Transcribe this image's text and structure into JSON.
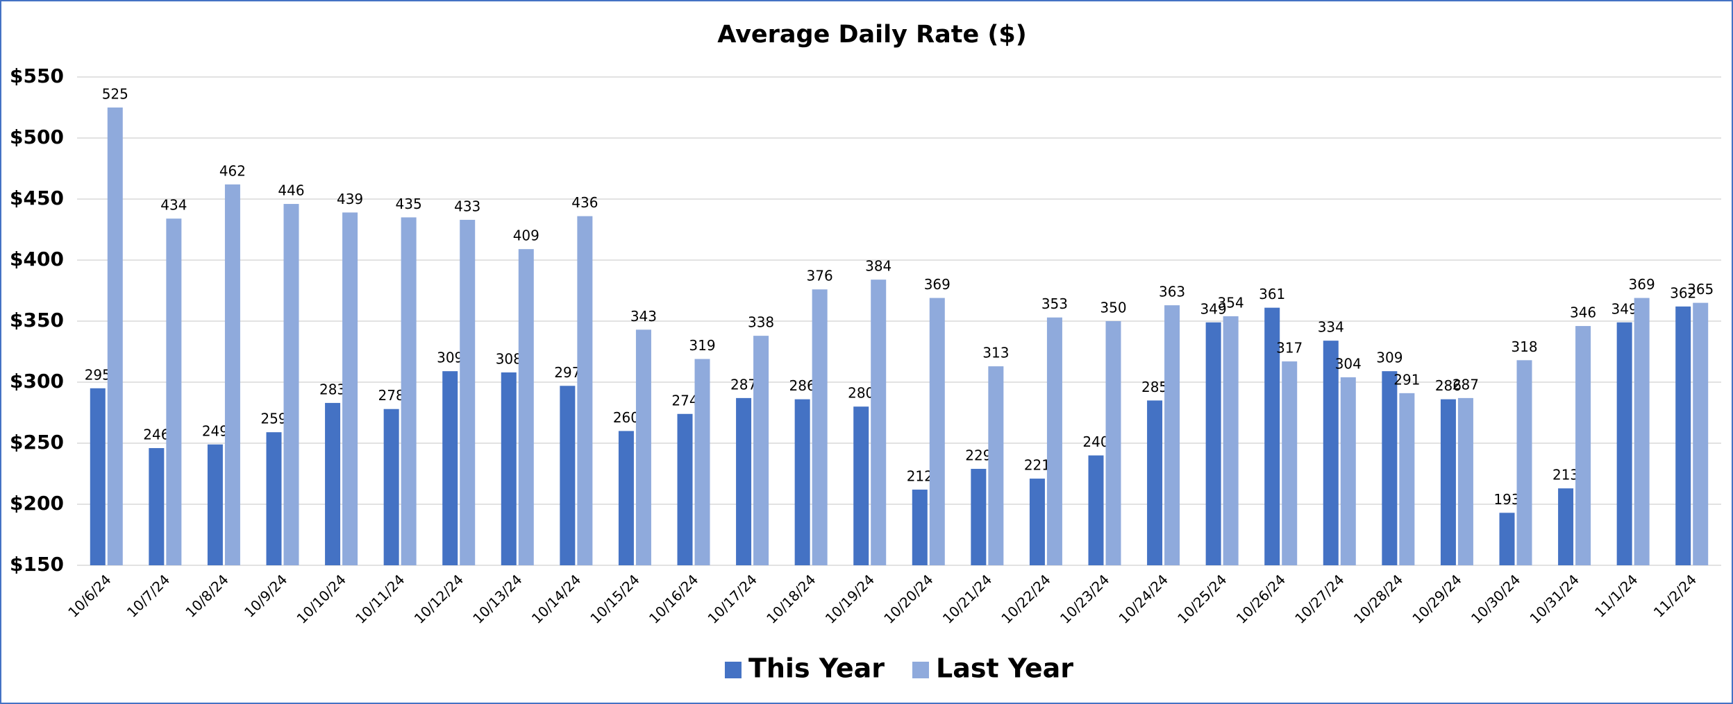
{
  "chart_data": {
    "type": "bar",
    "title": "Average Daily Rate ($)",
    "categories": [
      "10/6/24",
      "10/7/24",
      "10/8/24",
      "10/9/24",
      "10/10/24",
      "10/11/24",
      "10/12/24",
      "10/13/24",
      "10/14/24",
      "10/15/24",
      "10/16/24",
      "10/17/24",
      "10/18/24",
      "10/19/24",
      "10/20/24",
      "10/21/24",
      "10/22/24",
      "10/23/24",
      "10/24/24",
      "10/25/24",
      "10/26/24",
      "10/27/24",
      "10/28/24",
      "10/29/24",
      "10/30/24",
      "10/31/24",
      "11/1/24",
      "11/2/24"
    ],
    "series": [
      {
        "name": "This Year",
        "color": "#4472c4",
        "values": [
          295,
          246,
          249,
          259,
          283,
          278,
          309,
          308,
          297,
          260,
          274,
          287,
          286,
          280,
          212,
          229,
          221,
          240,
          285,
          349,
          361,
          334,
          309,
          286,
          193,
          213,
          349,
          362
        ]
      },
      {
        "name": "Last Year",
        "color": "#8faadc",
        "values": [
          525,
          434,
          462,
          446,
          439,
          435,
          433,
          409,
          436,
          343,
          319,
          338,
          376,
          384,
          369,
          313,
          353,
          350,
          363,
          354,
          317,
          304,
          291,
          287,
          318,
          346,
          369,
          365
        ]
      }
    ],
    "ylim": [
      150,
      550
    ],
    "yticks": [
      {
        "value": 150,
        "label": "$150"
      },
      {
        "value": 200,
        "label": "$200"
      },
      {
        "value": 250,
        "label": "$250"
      },
      {
        "value": 300,
        "label": "$300"
      },
      {
        "value": 350,
        "label": "$350"
      },
      {
        "value": 400,
        "label": "$400"
      },
      {
        "value": 450,
        "label": "$450"
      },
      {
        "value": 500,
        "label": "$500"
      },
      {
        "value": 550,
        "label": "$550"
      }
    ],
    "grid": true,
    "legend": "bottom"
  }
}
